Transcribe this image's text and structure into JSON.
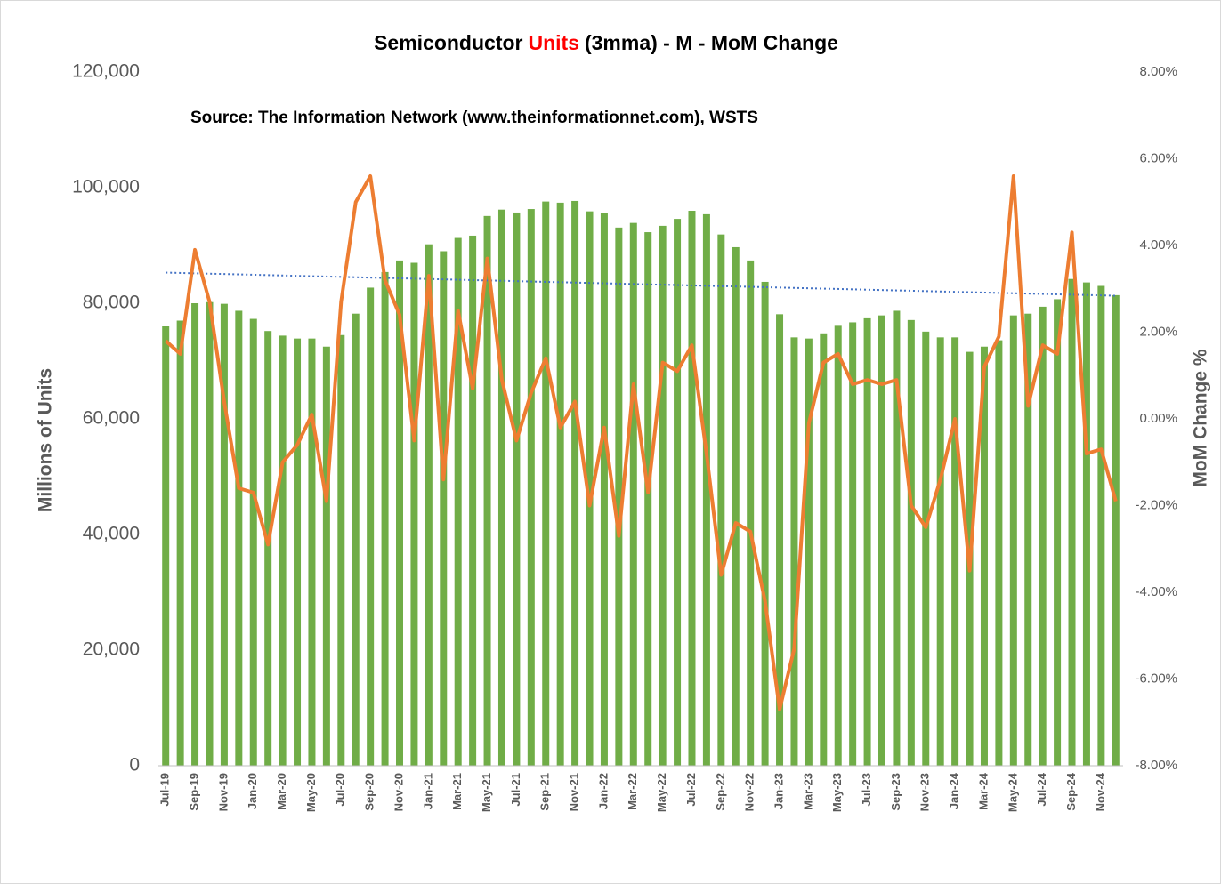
{
  "chart_data": {
    "type": "bar_line",
    "title": [
      "Semiconductor",
      "Units",
      "(3mma) - M - MoM Change"
    ],
    "title_colors": [
      "#000000",
      "#ff0000",
      "#000000"
    ],
    "subtitle": "Source: The Information Network (www.theinformationnet.com), WSTS",
    "ylabel": "Millions of Units",
    "y2label": "MoM Change %",
    "categories": [
      "Jul-19",
      null,
      "Sep-19",
      null,
      "Nov-19",
      null,
      "Jan-20",
      null,
      "Mar-20",
      null,
      "May-20",
      null,
      "Jul-20",
      null,
      "Sep-20",
      null,
      "Nov-20",
      null,
      "Jan-21",
      null,
      "Mar-21",
      null,
      "May-21",
      null,
      "Jul-21",
      null,
      "Sep-21",
      null,
      "Nov-21",
      null,
      "Jan-22",
      null,
      "Mar-22",
      null,
      "May-22",
      null,
      "Jul-22",
      null,
      "Sep-22",
      null,
      "Nov-22",
      null,
      "Jan-23",
      null,
      "Mar-23",
      null,
      "May-23",
      null,
      "Jul-23",
      null,
      "Sep-23",
      null,
      "Nov-23",
      null,
      "Jan-24",
      null,
      "Mar-24",
      null,
      "May-24",
      null,
      "Jul-24",
      null,
      "Sep-24",
      null,
      "Nov-24",
      null
    ],
    "series": [
      {
        "type": "bar",
        "color": "#70ad47",
        "values": [
          76000,
          77000,
          80000,
          80200,
          79900,
          78700,
          77300,
          75200,
          74400,
          73900,
          73900,
          72500,
          74500,
          78200,
          82700,
          85400,
          87400,
          87000,
          90200,
          89000,
          91300,
          91700,
          95100,
          96200,
          95700,
          96300,
          97600,
          97400,
          97700,
          95900,
          95600,
          93100,
          93900,
          92300,
          93400,
          94600,
          96000,
          95400,
          91900,
          89700,
          87400,
          83700,
          78100,
          74100,
          73900,
          74800,
          76100,
          76700,
          77400,
          77900,
          78700,
          77100,
          75100,
          74100,
          74100,
          71600,
          72500,
          73600,
          77900,
          78200,
          79400,
          80700,
          84200,
          83600,
          83000,
          81400
        ]
      },
      {
        "type": "line",
        "axis": "y2",
        "color": "#ed7d31",
        "values": [
          1.8,
          1.5,
          3.9,
          2.7,
          0.4,
          -1.6,
          -1.7,
          -2.9,
          -1.0,
          -0.6,
          0.1,
          -1.9,
          2.7,
          5.0,
          5.6,
          3.2,
          2.4,
          -0.5,
          3.3,
          -1.4,
          2.5,
          0.7,
          3.7,
          0.9,
          -0.5,
          0.6,
          1.4,
          -0.2,
          0.4,
          -2.0,
          -0.2,
          -2.7,
          0.8,
          -1.7,
          1.3,
          1.1,
          1.7,
          -0.8,
          -3.6,
          -2.4,
          -2.6,
          -4.2,
          -6.7,
          -5.3,
          -0.1,
          1.3,
          1.5,
          0.8,
          0.9,
          0.8,
          0.9,
          -2.0,
          -2.5,
          -1.4,
          0.0,
          -3.5,
          1.2,
          1.9,
          5.6,
          0.3,
          1.7,
          1.5,
          4.3,
          -0.8,
          -0.7,
          -1.9
        ]
      }
    ],
    "trend": {
      "start": 85300,
      "end": 81300,
      "color": "#4472c4"
    },
    "ylim": [
      0,
      120000
    ],
    "yticks": [
      0,
      {
        "value": 20000,
        "label": "20,000"
      },
      {
        "value": 40000,
        "label": "40,000"
      },
      {
        "value": 60000,
        "label": "60,000"
      },
      {
        "value": 80000,
        "label": "80,000"
      },
      {
        "value": 100000,
        "label": "100,000"
      },
      {
        "value": 120000,
        "label": "120,000"
      }
    ],
    "y2lim": [
      -8,
      8
    ],
    "y2ticks": [
      {
        "value": -8,
        "label": "-8.00%"
      },
      {
        "value": -6,
        "label": "-6.00%"
      },
      {
        "value": -4,
        "label": "-4.00%"
      },
      {
        "value": -2,
        "label": "-2.00%"
      },
      {
        "value": 0,
        "label": "0.00%"
      },
      {
        "value": 2,
        "label": "2.00%"
      },
      {
        "value": 4,
        "label": "4.00%"
      },
      {
        "value": 6,
        "label": "6.00%"
      },
      {
        "value": 8,
        "label": "8.00%"
      }
    ],
    "grid": false
  }
}
